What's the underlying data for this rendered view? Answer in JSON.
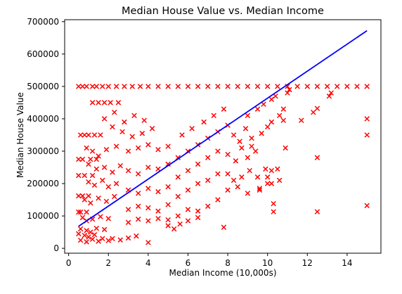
{
  "chart_data": {
    "type": "scatter",
    "title": "Median House Value vs. Median Income",
    "xlabel": "Median Income (10,000s)",
    "ylabel": "Median House Value",
    "xlim": [
      -0.2,
      15.7
    ],
    "ylim": [
      -15000,
      706000
    ],
    "x_ticks": [
      0,
      2,
      4,
      6,
      8,
      10,
      12,
      14
    ],
    "y_ticks": [
      0,
      100000,
      200000,
      300000,
      400000,
      500000,
      600000,
      700000
    ],
    "grid": false,
    "legend": "none",
    "marker": "x",
    "colors": {
      "scatter": "#ff0000",
      "fit_line": "#0000ff"
    },
    "series": [
      {
        "type": "scatter",
        "points": [
          [
            0.5,
            500000
          ],
          [
            0.7,
            500000
          ],
          [
            0.9,
            500000
          ],
          [
            1.2,
            500000
          ],
          [
            1.4,
            500000
          ],
          [
            1.7,
            500000
          ],
          [
            2.0,
            500000
          ],
          [
            2.4,
            500000
          ],
          [
            2.8,
            500000
          ],
          [
            3.2,
            500000
          ],
          [
            3.6,
            500000
          ],
          [
            4.0,
            500000
          ],
          [
            4.5,
            500000
          ],
          [
            5.0,
            500000
          ],
          [
            5.5,
            500000
          ],
          [
            6.0,
            500000
          ],
          [
            6.5,
            500000
          ],
          [
            7.0,
            500000
          ],
          [
            7.5,
            500000
          ],
          [
            8.0,
            500000
          ],
          [
            8.5,
            500000
          ],
          [
            9.0,
            500000
          ],
          [
            9.5,
            500000
          ],
          [
            10.0,
            500000
          ],
          [
            10.5,
            500000
          ],
          [
            11.0,
            500000
          ],
          [
            11.5,
            500000
          ],
          [
            12.0,
            500000
          ],
          [
            12.5,
            500000
          ],
          [
            13.0,
            500000
          ],
          [
            13.5,
            500000
          ],
          [
            14.0,
            500000
          ],
          [
            14.5,
            500000
          ],
          [
            15.0,
            500000
          ],
          [
            0.6,
            350000
          ],
          [
            0.8,
            350000
          ],
          [
            1.0,
            350000
          ],
          [
            1.3,
            350000
          ],
          [
            1.6,
            350000
          ],
          [
            0.5,
            275000
          ],
          [
            0.7,
            275000
          ],
          [
            1.1,
            275000
          ],
          [
            1.4,
            275000
          ],
          [
            0.5,
            225000
          ],
          [
            0.8,
            225000
          ],
          [
            1.2,
            225000
          ],
          [
            0.5,
            162000
          ],
          [
            0.7,
            162000
          ],
          [
            1.0,
            162000
          ],
          [
            0.5,
            112000
          ],
          [
            0.6,
            112000
          ],
          [
            0.9,
            112000
          ],
          [
            1.2,
            450000
          ],
          [
            1.5,
            450000
          ],
          [
            1.8,
            450000
          ],
          [
            2.1,
            450000
          ],
          [
            2.5,
            450000
          ],
          [
            1.8,
            400000
          ],
          [
            2.3,
            420000
          ],
          [
            2.8,
            390000
          ],
          [
            3.3,
            410000
          ],
          [
            3.8,
            395000
          ],
          [
            2.2,
            375000
          ],
          [
            2.7,
            360000
          ],
          [
            3.2,
            345000
          ],
          [
            3.7,
            355000
          ],
          [
            4.2,
            370000
          ],
          [
            0.9,
            310000
          ],
          [
            1.2,
            300000
          ],
          [
            1.5,
            285000
          ],
          [
            1.9,
            305000
          ],
          [
            2.4,
            315000
          ],
          [
            1.0,
            260000
          ],
          [
            1.4,
            245000
          ],
          [
            1.8,
            250000
          ],
          [
            2.2,
            235000
          ],
          [
            2.6,
            255000
          ],
          [
            1.0,
            205000
          ],
          [
            1.3,
            195000
          ],
          [
            1.7,
            210000
          ],
          [
            2.0,
            190000
          ],
          [
            2.4,
            200000
          ],
          [
            0.8,
            150000
          ],
          [
            1.1,
            140000
          ],
          [
            1.5,
            155000
          ],
          [
            1.9,
            145000
          ],
          [
            2.3,
            160000
          ],
          [
            0.7,
            95000
          ],
          [
            0.9,
            85000
          ],
          [
            1.2,
            90000
          ],
          [
            1.6,
            98000
          ],
          [
            2.0,
            92000
          ],
          [
            0.6,
            60000
          ],
          [
            0.9,
            55000
          ],
          [
            1.1,
            50000
          ],
          [
            1.4,
            62000
          ],
          [
            1.8,
            58000
          ],
          [
            0.5,
            45000
          ],
          [
            0.8,
            40000
          ],
          [
            1.0,
            35000
          ],
          [
            1.3,
            42000
          ],
          [
            1.7,
            30000
          ],
          [
            0.6,
            25000
          ],
          [
            0.9,
            20000
          ],
          [
            1.2,
            28000
          ],
          [
            1.5,
            22000
          ],
          [
            2.0,
            24000
          ],
          [
            2.2,
            30000
          ],
          [
            2.6,
            26000
          ],
          [
            3.0,
            32000
          ],
          [
            3.4,
            38000
          ],
          [
            4.0,
            18000
          ],
          [
            3.0,
            80000
          ],
          [
            3.5,
            90000
          ],
          [
            4.0,
            85000
          ],
          [
            4.5,
            92000
          ],
          [
            5.0,
            88000
          ],
          [
            3.0,
            120000
          ],
          [
            3.5,
            130000
          ],
          [
            4.0,
            125000
          ],
          [
            4.5,
            115000
          ],
          [
            5.0,
            135000
          ],
          [
            3.0,
            180000
          ],
          [
            3.5,
            170000
          ],
          [
            4.0,
            185000
          ],
          [
            4.5,
            175000
          ],
          [
            5.0,
            190000
          ],
          [
            3.0,
            240000
          ],
          [
            3.5,
            230000
          ],
          [
            4.0,
            250000
          ],
          [
            4.5,
            245000
          ],
          [
            5.0,
            260000
          ],
          [
            3.0,
            300000
          ],
          [
            3.5,
            310000
          ],
          [
            4.0,
            320000
          ],
          [
            4.5,
            305000
          ],
          [
            5.0,
            315000
          ],
          [
            5.5,
            280000
          ],
          [
            6.0,
            300000
          ],
          [
            6.5,
            320000
          ],
          [
            7.0,
            340000
          ],
          [
            7.5,
            360000
          ],
          [
            5.5,
            220000
          ],
          [
            6.0,
            240000
          ],
          [
            6.5,
            260000
          ],
          [
            7.0,
            280000
          ],
          [
            7.5,
            300000
          ],
          [
            5.5,
            160000
          ],
          [
            6.0,
            180000
          ],
          [
            6.5,
            200000
          ],
          [
            7.0,
            210000
          ],
          [
            7.5,
            230000
          ],
          [
            5.5,
            100000
          ],
          [
            6.0,
            120000
          ],
          [
            6.5,
            115000
          ],
          [
            7.0,
            130000
          ],
          [
            7.5,
            150000
          ],
          [
            5.0,
            70000
          ],
          [
            5.3,
            60000
          ],
          [
            5.6,
            75000
          ],
          [
            6.0,
            85000
          ],
          [
            6.5,
            95000
          ],
          [
            5.7,
            350000
          ],
          [
            6.2,
            370000
          ],
          [
            6.8,
            390000
          ],
          [
            7.3,
            410000
          ],
          [
            7.8,
            430000
          ],
          [
            8.0,
            380000
          ],
          [
            8.3,
            350000
          ],
          [
            8.6,
            330000
          ],
          [
            8.9,
            370000
          ],
          [
            9.2,
            340000
          ],
          [
            8.0,
            290000
          ],
          [
            8.4,
            270000
          ],
          [
            8.7,
            310000
          ],
          [
            9.0,
            280000
          ],
          [
            9.4,
            300000
          ],
          [
            8.0,
            230000
          ],
          [
            8.3,
            210000
          ],
          [
            8.7,
            220000
          ],
          [
            9.1,
            240000
          ],
          [
            9.5,
            220000
          ],
          [
            8.0,
            180000
          ],
          [
            8.5,
            190000
          ],
          [
            9.0,
            170000
          ],
          [
            9.6,
            185000
          ],
          [
            10.0,
            200000
          ],
          [
            9.0,
            410000
          ],
          [
            9.5,
            430000
          ],
          [
            9.8,
            445000
          ],
          [
            10.2,
            460000
          ],
          [
            10.4,
            470000
          ],
          [
            9.7,
            355000
          ],
          [
            10.0,
            375000
          ],
          [
            10.2,
            390000
          ],
          [
            10.6,
            410000
          ],
          [
            10.8,
            430000
          ],
          [
            7.8,
            65000
          ],
          [
            9.6,
            180000
          ],
          [
            9.9,
            245000
          ],
          [
            10.2,
            240000
          ],
          [
            10.5,
            245000
          ],
          [
            10.0,
            220000
          ],
          [
            10.2,
            200000
          ],
          [
            10.6,
            210000
          ],
          [
            9.2,
            315000
          ],
          [
            10.9,
            310000
          ],
          [
            10.8,
            395000
          ],
          [
            11.0,
            480000
          ],
          [
            11.1,
            490000
          ],
          [
            11.7,
            395000
          ],
          [
            12.3,
            420000
          ],
          [
            12.5,
            432000
          ],
          [
            13.1,
            470000
          ],
          [
            13.2,
            480000
          ],
          [
            12.5,
            280000
          ],
          [
            10.3,
            138000
          ],
          [
            10.3,
            113000
          ],
          [
            12.5,
            113000
          ],
          [
            15.0,
            400000
          ],
          [
            15.0,
            350000
          ],
          [
            15.0,
            132000
          ]
        ]
      },
      {
        "type": "line",
        "points": [
          [
            0.5,
            68000
          ],
          [
            15.0,
            672000
          ]
        ]
      }
    ]
  }
}
